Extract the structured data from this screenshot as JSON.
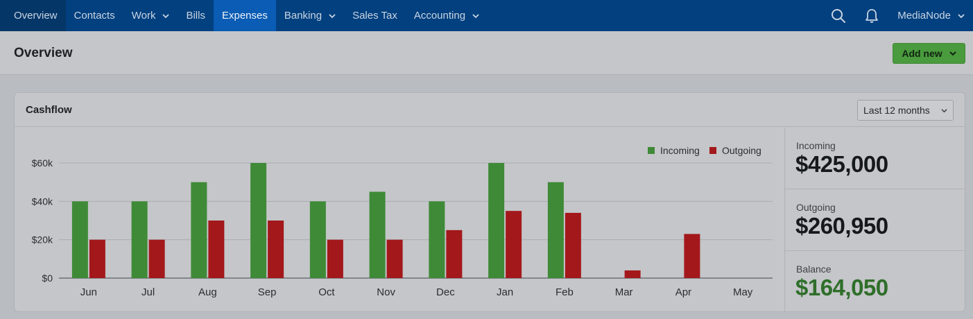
{
  "nav": {
    "items": [
      {
        "label": "Overview",
        "dropdown": false,
        "active": false,
        "first": true
      },
      {
        "label": "Contacts",
        "dropdown": false,
        "active": false
      },
      {
        "label": "Work",
        "dropdown": true,
        "active": false
      },
      {
        "label": "Bills",
        "dropdown": false,
        "active": false
      },
      {
        "label": "Expenses",
        "dropdown": false,
        "active": true
      },
      {
        "label": "Banking",
        "dropdown": true,
        "active": false
      },
      {
        "label": "Sales Tax",
        "dropdown": false,
        "active": false
      },
      {
        "label": "Accounting",
        "dropdown": true,
        "active": false
      }
    ],
    "account": "MediaNode",
    "icons": [
      "search-icon",
      "bell-icon"
    ]
  },
  "page": {
    "title": "Overview",
    "add_new_label": "Add new"
  },
  "card": {
    "title": "Cashflow",
    "period": "Last 12 months"
  },
  "stats": {
    "incoming_label": "Incoming",
    "incoming_value": "$425,000",
    "outgoing_label": "Outgoing",
    "outgoing_value": "$260,950",
    "balance_label": "Balance",
    "balance_value": "$164,050"
  },
  "colors": {
    "nav_bg": "#03407f",
    "nav_active": "#0a5cb4",
    "incoming": "#3f8a37",
    "outgoing": "#a3181b",
    "balance": "#2f6e2a",
    "add_new": "#4a9a3e"
  },
  "chart_data": {
    "type": "bar",
    "categories": [
      "Jun",
      "Jul",
      "Aug",
      "Sep",
      "Oct",
      "Nov",
      "Dec",
      "Jan",
      "Feb",
      "Mar",
      "Apr",
      "May"
    ],
    "series": [
      {
        "name": "Incoming",
        "color": "#3f8a37",
        "values": [
          40000,
          40000,
          50000,
          60000,
          40000,
          45000,
          40000,
          60000,
          50000,
          0,
          0,
          0
        ]
      },
      {
        "name": "Outgoing",
        "color": "#a3181b",
        "values": [
          20000,
          20000,
          30000,
          30000,
          20000,
          20000,
          25000,
          35000,
          34000,
          4000,
          23000,
          0
        ]
      }
    ],
    "yticks": [
      {
        "value": 0,
        "label": "$0"
      },
      {
        "value": 20000,
        "label": "$20k"
      },
      {
        "value": 40000,
        "label": "$40k"
      },
      {
        "value": 60000,
        "label": "$60k"
      }
    ],
    "ylim": [
      0,
      60000
    ],
    "grid": true,
    "legend": "top-right"
  }
}
